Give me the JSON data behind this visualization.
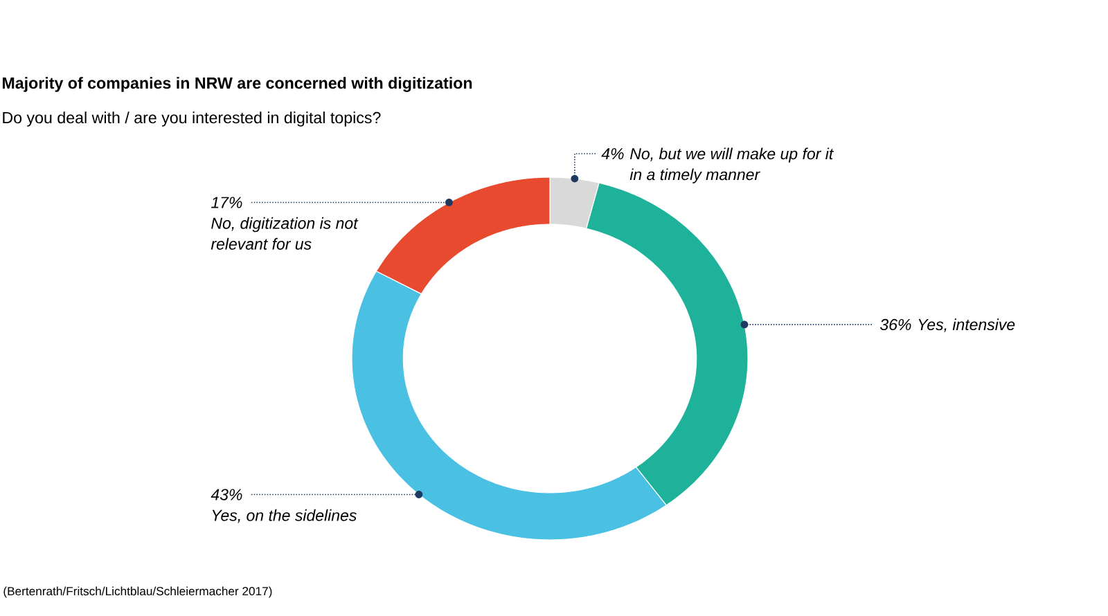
{
  "chart_data": {
    "type": "donut",
    "title": "Majority of companies in NRW are concerned with digitization",
    "subtitle": "Do you deal with / are you interested in digital topics?",
    "categories": [
      "No, but we will make up for it in a timely manner",
      "Yes, intensive",
      "Yes, on the sidelines",
      "No, digitization is not relevant for us"
    ],
    "values": [
      4,
      36,
      43,
      17
    ],
    "colors": [
      "#d9d9d9",
      "#1fb29a",
      "#4ac0e3",
      "#e84a30"
    ],
    "value_labels": [
      "4%",
      "36%",
      "43%",
      "17%"
    ],
    "annotations": [
      "(Bertenrath/Fritsch/Lichtblau/Schleiermacher 2017)"
    ]
  }
}
